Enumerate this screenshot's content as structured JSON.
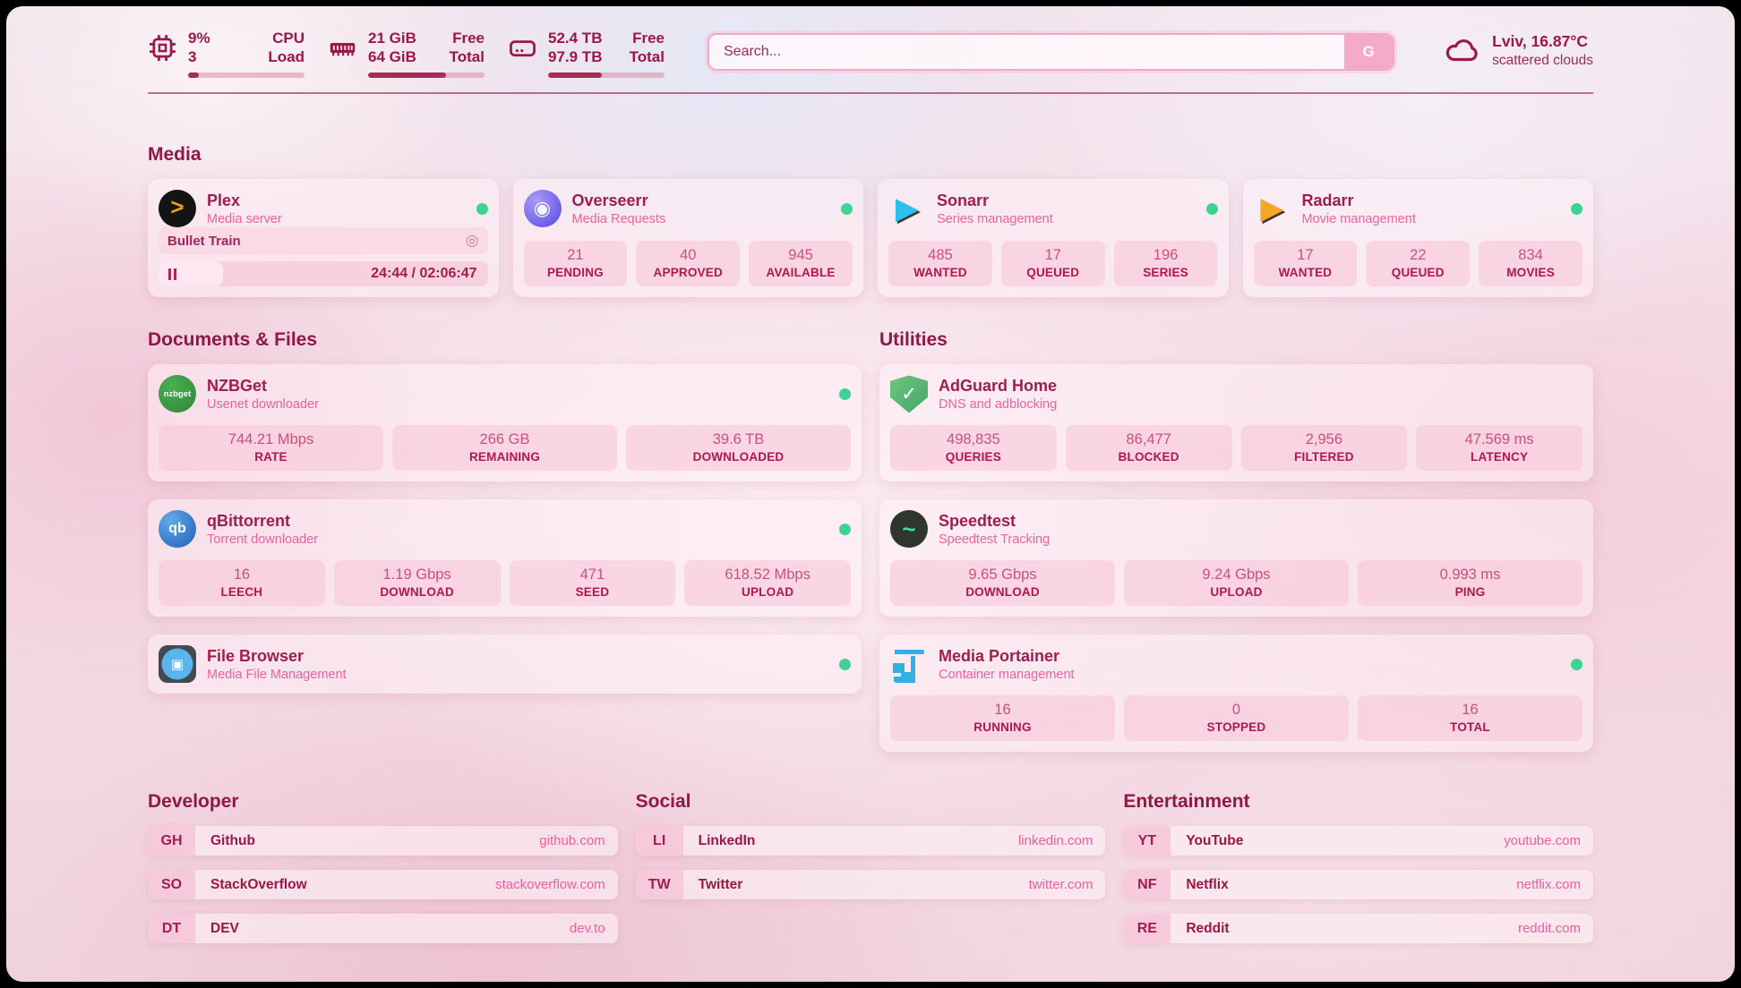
{
  "topbar": {
    "cpu": {
      "icon": "cpu-chip-icon",
      "values": [
        "9%",
        "3"
      ],
      "labels": [
        "CPU",
        "Load"
      ],
      "progress_percent": 9
    },
    "memory": {
      "icon": "ram-icon",
      "values": [
        "21 GiB",
        "64 GiB"
      ],
      "labels": [
        "Free",
        "Total"
      ],
      "progress_percent": 67
    },
    "disk": {
      "icon": "disk-icon",
      "values": [
        "52.4 TB",
        "97.9 TB"
      ],
      "labels": [
        "Free",
        "Total"
      ],
      "progress_percent": 46
    },
    "search": {
      "placeholder": "Search...",
      "button_label": "G"
    },
    "weather": {
      "icon": "cloud-icon",
      "location_temperature": "Lviv, 16.87°C",
      "condition": "scattered clouds"
    }
  },
  "section_titles": {
    "media": "Media",
    "documents": "Documents & Files",
    "utilities": "Utilities"
  },
  "colors": {
    "accent_dark": "#8f1946",
    "accent": "#a01d50",
    "pink": "#ec639b",
    "status_green": "#3ed392"
  },
  "apps": {
    "media": [
      {
        "id": "plex",
        "title": "Plex",
        "subtitle": "Media server",
        "icon_name": "plex-icon",
        "icon_glyph": ">",
        "online": true,
        "player": {
          "track": "Bullet Train",
          "time": "24:44 / 02:06:47",
          "progress_percent": 19.5,
          "session_icon": "◎"
        }
      },
      {
        "id": "overseerr",
        "title": "Overseerr",
        "subtitle": "Media Requests",
        "icon_name": "overseerr-icon",
        "icon_glyph": "◉",
        "online": true,
        "stats": [
          {
            "value": "21",
            "label": "PENDING"
          },
          {
            "value": "40",
            "label": "APPROVED"
          },
          {
            "value": "945",
            "label": "AVAILABLE"
          }
        ]
      },
      {
        "id": "sonarr",
        "title": "Sonarr",
        "subtitle": "Series management",
        "icon_name": "sonarr-icon",
        "icon_glyph": "▶",
        "online": true,
        "stats": [
          {
            "value": "485",
            "label": "WANTED"
          },
          {
            "value": "17",
            "label": "QUEUED"
          },
          {
            "value": "196",
            "label": "SERIES"
          }
        ]
      },
      {
        "id": "radarr",
        "title": "Radarr",
        "subtitle": "Movie management",
        "icon_name": "radarr-icon",
        "icon_glyph": "▶",
        "online": true,
        "stats": [
          {
            "value": "17",
            "label": "WANTED"
          },
          {
            "value": "22",
            "label": "QUEUED"
          },
          {
            "value": "834",
            "label": "MOVIES"
          }
        ]
      }
    ],
    "documents": [
      {
        "id": "nzbget",
        "title": "NZBGet",
        "subtitle": "Usenet downloader",
        "icon_name": "nzbget-icon",
        "icon_glyph": "nzbget",
        "online": true,
        "stats": [
          {
            "value": "744.21 Mbps",
            "label": "RATE"
          },
          {
            "value": "266 GB",
            "label": "REMAINING"
          },
          {
            "value": "39.6 TB",
            "label": "DOWNLOADED"
          }
        ]
      },
      {
        "id": "qbittorrent",
        "title": "qBittorrent",
        "subtitle": "Torrent downloader",
        "icon_name": "qbittorrent-icon",
        "icon_glyph": "qb",
        "online": true,
        "stats": [
          {
            "value": "16",
            "label": "LEECH"
          },
          {
            "value": "1.19 Gbps",
            "label": "DOWNLOAD"
          },
          {
            "value": "471",
            "label": "SEED"
          },
          {
            "value": "618.52 Mbps",
            "label": "UPLOAD"
          }
        ]
      },
      {
        "id": "filebrowser",
        "title": "File Browser",
        "subtitle": "Media File Management",
        "icon_name": "filebrowser-icon",
        "icon_glyph": "▣",
        "online": true,
        "compact": true
      }
    ],
    "utilities": [
      {
        "id": "adguard",
        "title": "AdGuard Home",
        "subtitle": "DNS and adblocking",
        "icon_name": "adguard-shield-icon",
        "icon_glyph": "✓",
        "online": false,
        "stats": [
          {
            "value": "498,835",
            "label": "QUERIES"
          },
          {
            "value": "86,477",
            "label": "BLOCKED"
          },
          {
            "value": "2,956",
            "label": "FILTERED"
          },
          {
            "value": "47.569 ms",
            "label": "LATENCY"
          }
        ]
      },
      {
        "id": "speedtest",
        "title": "Speedtest",
        "subtitle": "Speedtest Tracking",
        "icon_name": "speedtest-icon",
        "icon_glyph": "~",
        "online": false,
        "stats": [
          {
            "value": "9.65 Gbps",
            "label": "DOWNLOAD"
          },
          {
            "value": "9.24 Gbps",
            "label": "UPLOAD"
          },
          {
            "value": "0.993 ms",
            "label": "PING"
          }
        ]
      },
      {
        "id": "portainer",
        "title": "Media Portainer",
        "subtitle": "Container management",
        "icon_name": "portainer-crane-icon",
        "icon_glyph": "",
        "online": true,
        "stats": [
          {
            "value": "16",
            "label": "RUNNING"
          },
          {
            "value": "0",
            "label": "STOPPED"
          },
          {
            "value": "16",
            "label": "TOTAL"
          }
        ]
      }
    ]
  },
  "link_sections": [
    {
      "title": "Developer",
      "links": [
        {
          "abbr": "GH",
          "name": "Github",
          "url": "github.com"
        },
        {
          "abbr": "SO",
          "name": "StackOverflow",
          "url": "stackoverflow.com"
        },
        {
          "abbr": "DT",
          "name": "DEV",
          "url": "dev.to"
        }
      ]
    },
    {
      "title": "Social",
      "links": [
        {
          "abbr": "LI",
          "name": "LinkedIn",
          "url": "linkedin.com"
        },
        {
          "abbr": "TW",
          "name": "Twitter",
          "url": "twitter.com"
        }
      ]
    },
    {
      "title": "Entertainment",
      "links": [
        {
          "abbr": "YT",
          "name": "YouTube",
          "url": "youtube.com"
        },
        {
          "abbr": "NF",
          "name": "Netflix",
          "url": "netflix.com"
        },
        {
          "abbr": "RE",
          "name": "Reddit",
          "url": "reddit.com"
        }
      ]
    }
  ]
}
